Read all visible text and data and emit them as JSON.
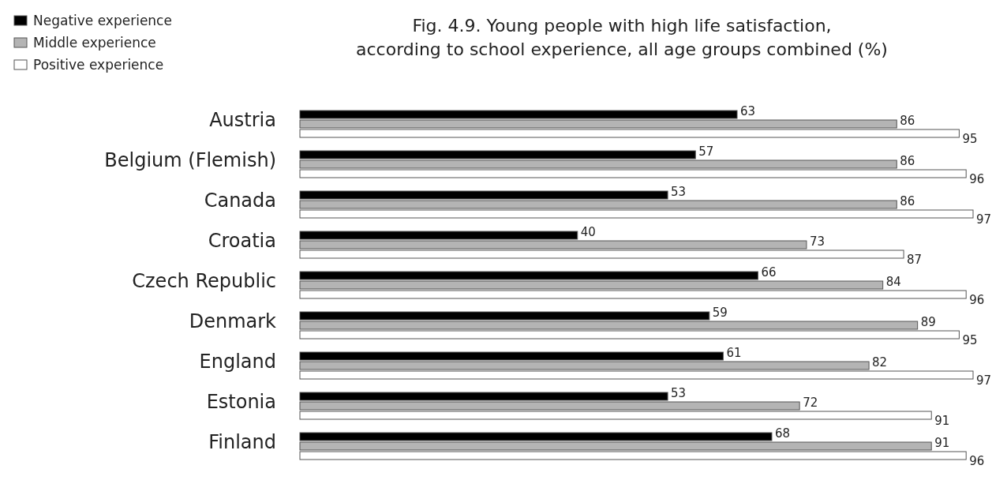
{
  "chart_data": {
    "type": "bar",
    "orientation": "horizontal",
    "title": "Fig. 4.9. Young people with high life satisfaction, according to school experience, all age groups combined (%)",
    "categories": [
      "Austria",
      "Belgium (Flemish)",
      "Canada",
      "Croatia",
      "Czech Republic",
      "Denmark",
      "England",
      "Estonia",
      "Finland"
    ],
    "series": [
      {
        "name": "Negative experience",
        "color": "#000000",
        "values": [
          63,
          57,
          53,
          40,
          66,
          59,
          61,
          53,
          68
        ]
      },
      {
        "name": "Middle experience",
        "color": "#b4b4b4",
        "values": [
          86,
          86,
          86,
          73,
          84,
          89,
          82,
          72,
          91
        ]
      },
      {
        "name": "Positive experience",
        "color": "#ffffff",
        "values": [
          95,
          96,
          97,
          87,
          96,
          95,
          97,
          91,
          96
        ]
      }
    ],
    "data_labels": true,
    "legend": "top left"
  }
}
